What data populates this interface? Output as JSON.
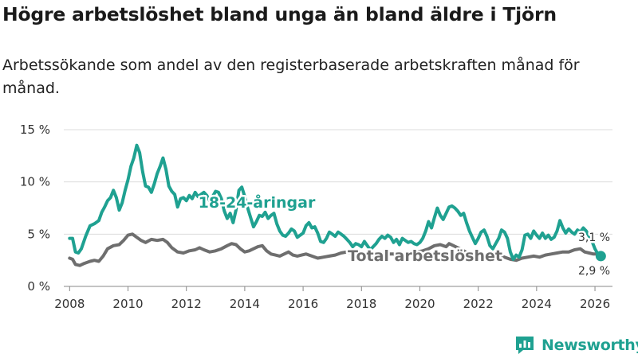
{
  "title": "Högre arbetslöshet bland unga än bland äldre i Tjörn",
  "subtitle": "Arbetssökande som andel av den registerbaserade arbetskraften månad för månad.",
  "brand": {
    "name": "Newsworthy",
    "color": "#1fa191"
  },
  "chart_data": {
    "type": "line",
    "xlim": [
      2007.8,
      2026.6
    ],
    "ylim": [
      0,
      15
    ],
    "yticks": [
      0,
      5,
      10,
      15
    ],
    "ytick_labels": [
      "0 %",
      "5 %",
      "10 %",
      "15 %"
    ],
    "xticks": [
      2008,
      2010,
      2012,
      2014,
      2016,
      2018,
      2020,
      2022,
      2024,
      2026
    ],
    "xtick_labels": [
      "2008",
      "2010",
      "2012",
      "2014",
      "2016",
      "2018",
      "2020",
      "2022",
      "2024",
      "2026"
    ],
    "series": [
      {
        "name": "Total arbetslöshet",
        "label": "Total arbetslöshet",
        "color": "#6e6e6e",
        "end_label": "2,9 %",
        "points": [
          [
            2008.0,
            2.7
          ],
          [
            2008.1,
            2.6
          ],
          [
            2008.2,
            2.1
          ],
          [
            2008.35,
            2.0
          ],
          [
            2008.5,
            2.2
          ],
          [
            2008.7,
            2.4
          ],
          [
            2008.85,
            2.5
          ],
          [
            2009.0,
            2.4
          ],
          [
            2009.15,
            2.9
          ],
          [
            2009.3,
            3.6
          ],
          [
            2009.5,
            3.9
          ],
          [
            2009.7,
            4.0
          ],
          [
            2009.85,
            4.4
          ],
          [
            2010.0,
            4.9
          ],
          [
            2010.15,
            5.0
          ],
          [
            2010.3,
            4.7
          ],
          [
            2010.45,
            4.4
          ],
          [
            2010.6,
            4.2
          ],
          [
            2010.8,
            4.5
          ],
          [
            2011.0,
            4.4
          ],
          [
            2011.2,
            4.5
          ],
          [
            2011.35,
            4.2
          ],
          [
            2011.5,
            3.7
          ],
          [
            2011.7,
            3.3
          ],
          [
            2011.9,
            3.2
          ],
          [
            2012.1,
            3.4
          ],
          [
            2012.3,
            3.5
          ],
          [
            2012.45,
            3.7
          ],
          [
            2012.6,
            3.5
          ],
          [
            2012.8,
            3.3
          ],
          [
            2013.0,
            3.4
          ],
          [
            2013.2,
            3.6
          ],
          [
            2013.4,
            3.9
          ],
          [
            2013.55,
            4.1
          ],
          [
            2013.7,
            4.0
          ],
          [
            2013.85,
            3.6
          ],
          [
            2014.0,
            3.3
          ],
          [
            2014.15,
            3.4
          ],
          [
            2014.3,
            3.6
          ],
          [
            2014.45,
            3.8
          ],
          [
            2014.6,
            3.9
          ],
          [
            2014.75,
            3.4
          ],
          [
            2014.9,
            3.1
          ],
          [
            2015.05,
            3.0
          ],
          [
            2015.2,
            2.9
          ],
          [
            2015.35,
            3.1
          ],
          [
            2015.5,
            3.3
          ],
          [
            2015.65,
            3.0
          ],
          [
            2015.8,
            2.9
          ],
          [
            2015.95,
            3.0
          ],
          [
            2016.1,
            3.1
          ],
          [
            2016.3,
            2.9
          ],
          [
            2016.5,
            2.7
          ],
          [
            2016.7,
            2.8
          ],
          [
            2016.9,
            2.9
          ],
          [
            2017.1,
            3.0
          ],
          [
            2017.3,
            3.2
          ],
          [
            2017.5,
            3.3
          ],
          [
            2017.7,
            3.1
          ],
          [
            2017.9,
            2.9
          ],
          [
            2018.1,
            2.8
          ],
          [
            2018.3,
            2.9
          ],
          [
            2018.5,
            2.8
          ],
          [
            2018.7,
            3.0
          ],
          [
            2018.9,
            3.1
          ],
          [
            2019.1,
            3.1
          ],
          [
            2019.3,
            2.9
          ],
          [
            2019.5,
            2.9
          ],
          [
            2019.7,
            3.1
          ],
          [
            2019.9,
            3.3
          ],
          [
            2020.1,
            3.4
          ],
          [
            2020.3,
            3.6
          ],
          [
            2020.5,
            3.9
          ],
          [
            2020.7,
            4.0
          ],
          [
            2020.9,
            3.8
          ],
          [
            2021.0,
            4.1
          ],
          [
            2021.15,
            3.9
          ],
          [
            2021.3,
            3.7
          ],
          [
            2021.5,
            3.4
          ],
          [
            2021.7,
            3.1
          ],
          [
            2021.9,
            2.9
          ],
          [
            2022.1,
            2.8
          ],
          [
            2022.3,
            2.9
          ],
          [
            2022.5,
            3.0
          ],
          [
            2022.7,
            3.0
          ],
          [
            2022.9,
            2.8
          ],
          [
            2023.1,
            2.6
          ],
          [
            2023.3,
            2.5
          ],
          [
            2023.5,
            2.7
          ],
          [
            2023.7,
            2.8
          ],
          [
            2023.9,
            2.9
          ],
          [
            2024.1,
            2.8
          ],
          [
            2024.3,
            3.0
          ],
          [
            2024.5,
            3.1
          ],
          [
            2024.7,
            3.2
          ],
          [
            2024.9,
            3.3
          ],
          [
            2025.1,
            3.3
          ],
          [
            2025.3,
            3.5
          ],
          [
            2025.5,
            3.6
          ],
          [
            2025.65,
            3.3
          ],
          [
            2025.8,
            3.2
          ],
          [
            2025.95,
            3.1
          ],
          [
            2026.1,
            3.1
          ],
          [
            2026.2,
            2.9
          ]
        ]
      },
      {
        "name": "18-24-åringar",
        "label": "18-24-åringar",
        "color": "#1fa191",
        "end_label": "3,1 %",
        "points": [
          [
            2008.0,
            4.6
          ],
          [
            2008.1,
            4.6
          ],
          [
            2008.2,
            3.3
          ],
          [
            2008.3,
            3.2
          ],
          [
            2008.4,
            3.6
          ],
          [
            2008.55,
            4.8
          ],
          [
            2008.7,
            5.8
          ],
          [
            2008.85,
            6.0
          ],
          [
            2009.0,
            6.3
          ],
          [
            2009.1,
            7.1
          ],
          [
            2009.2,
            7.6
          ],
          [
            2009.3,
            8.2
          ],
          [
            2009.4,
            8.5
          ],
          [
            2009.5,
            9.2
          ],
          [
            2009.6,
            8.5
          ],
          [
            2009.7,
            7.3
          ],
          [
            2009.8,
            8.0
          ],
          [
            2009.9,
            9.2
          ],
          [
            2010.0,
            10.2
          ],
          [
            2010.1,
            11.5
          ],
          [
            2010.2,
            12.3
          ],
          [
            2010.3,
            13.5
          ],
          [
            2010.4,
            12.8
          ],
          [
            2010.5,
            11.0
          ],
          [
            2010.6,
            9.6
          ],
          [
            2010.7,
            9.5
          ],
          [
            2010.8,
            9.0
          ],
          [
            2010.9,
            9.8
          ],
          [
            2011.0,
            10.8
          ],
          [
            2011.1,
            11.5
          ],
          [
            2011.2,
            12.3
          ],
          [
            2011.3,
            11.2
          ],
          [
            2011.4,
            9.6
          ],
          [
            2011.5,
            9.1
          ],
          [
            2011.6,
            8.8
          ],
          [
            2011.7,
            7.6
          ],
          [
            2011.8,
            8.4
          ],
          [
            2011.9,
            8.5
          ],
          [
            2012.0,
            8.2
          ],
          [
            2012.1,
            8.7
          ],
          [
            2012.2,
            8.4
          ],
          [
            2012.3,
            9.0
          ],
          [
            2012.4,
            8.6
          ],
          [
            2012.5,
            8.8
          ],
          [
            2012.6,
            9.0
          ],
          [
            2012.7,
            8.7
          ],
          [
            2012.8,
            8.2
          ],
          [
            2012.9,
            8.6
          ],
          [
            2013.0,
            9.1
          ],
          [
            2013.1,
            9.0
          ],
          [
            2013.2,
            8.4
          ],
          [
            2013.3,
            7.2
          ],
          [
            2013.4,
            6.5
          ],
          [
            2013.5,
            7.0
          ],
          [
            2013.6,
            6.1
          ],
          [
            2013.7,
            7.3
          ],
          [
            2013.8,
            9.2
          ],
          [
            2013.9,
            9.5
          ],
          [
            2014.0,
            8.6
          ],
          [
            2014.1,
            7.5
          ],
          [
            2014.2,
            6.6
          ],
          [
            2014.3,
            5.7
          ],
          [
            2014.4,
            6.2
          ],
          [
            2014.5,
            6.8
          ],
          [
            2014.6,
            6.7
          ],
          [
            2014.7,
            7.1
          ],
          [
            2014.8,
            6.5
          ],
          [
            2014.9,
            6.8
          ],
          [
            2015.0,
            7.0
          ],
          [
            2015.1,
            6.0
          ],
          [
            2015.2,
            5.3
          ],
          [
            2015.3,
            4.9
          ],
          [
            2015.4,
            4.8
          ],
          [
            2015.5,
            5.1
          ],
          [
            2015.6,
            5.5
          ],
          [
            2015.7,
            5.3
          ],
          [
            2015.8,
            4.7
          ],
          [
            2015.9,
            4.9
          ],
          [
            2016.0,
            5.1
          ],
          [
            2016.1,
            5.8
          ],
          [
            2016.2,
            6.1
          ],
          [
            2016.3,
            5.6
          ],
          [
            2016.4,
            5.7
          ],
          [
            2016.5,
            5.1
          ],
          [
            2016.6,
            4.3
          ],
          [
            2016.7,
            4.2
          ],
          [
            2016.8,
            4.6
          ],
          [
            2016.9,
            5.2
          ],
          [
            2017.0,
            5.0
          ],
          [
            2017.1,
            4.8
          ],
          [
            2017.2,
            5.2
          ],
          [
            2017.3,
            5.0
          ],
          [
            2017.4,
            4.8
          ],
          [
            2017.5,
            4.5
          ],
          [
            2017.6,
            4.2
          ],
          [
            2017.7,
            3.8
          ],
          [
            2017.8,
            4.1
          ],
          [
            2017.9,
            4.0
          ],
          [
            2018.0,
            3.8
          ],
          [
            2018.1,
            4.3
          ],
          [
            2018.2,
            3.9
          ],
          [
            2018.3,
            3.5
          ],
          [
            2018.4,
            3.8
          ],
          [
            2018.5,
            4.1
          ],
          [
            2018.6,
            4.5
          ],
          [
            2018.7,
            4.8
          ],
          [
            2018.8,
            4.6
          ],
          [
            2018.9,
            4.9
          ],
          [
            2019.0,
            4.7
          ],
          [
            2019.1,
            4.2
          ],
          [
            2019.2,
            4.5
          ],
          [
            2019.3,
            4.0
          ],
          [
            2019.4,
            4.6
          ],
          [
            2019.5,
            4.4
          ],
          [
            2019.6,
            4.2
          ],
          [
            2019.7,
            4.3
          ],
          [
            2019.8,
            4.1
          ],
          [
            2019.9,
            4.0
          ],
          [
            2020.0,
            4.2
          ],
          [
            2020.1,
            4.6
          ],
          [
            2020.2,
            5.3
          ],
          [
            2020.3,
            6.2
          ],
          [
            2020.4,
            5.6
          ],
          [
            2020.5,
            6.6
          ],
          [
            2020.6,
            7.5
          ],
          [
            2020.7,
            6.8
          ],
          [
            2020.8,
            6.4
          ],
          [
            2020.9,
            7.0
          ],
          [
            2021.0,
            7.6
          ],
          [
            2021.1,
            7.7
          ],
          [
            2021.2,
            7.5
          ],
          [
            2021.3,
            7.2
          ],
          [
            2021.4,
            6.8
          ],
          [
            2021.5,
            7.0
          ],
          [
            2021.6,
            6.1
          ],
          [
            2021.7,
            5.3
          ],
          [
            2021.8,
            4.7
          ],
          [
            2021.9,
            4.1
          ],
          [
            2022.0,
            4.6
          ],
          [
            2022.1,
            5.2
          ],
          [
            2022.2,
            5.4
          ],
          [
            2022.3,
            4.8
          ],
          [
            2022.4,
            3.9
          ],
          [
            2022.5,
            3.6
          ],
          [
            2022.6,
            4.1
          ],
          [
            2022.7,
            4.6
          ],
          [
            2022.8,
            5.4
          ],
          [
            2022.9,
            5.2
          ],
          [
            2023.0,
            4.6
          ],
          [
            2023.1,
            3.3
          ],
          [
            2023.2,
            2.6
          ],
          [
            2023.3,
            3.0
          ],
          [
            2023.4,
            2.8
          ],
          [
            2023.5,
            3.5
          ],
          [
            2023.6,
            4.9
          ],
          [
            2023.7,
            5.0
          ],
          [
            2023.8,
            4.6
          ],
          [
            2023.9,
            5.3
          ],
          [
            2024.0,
            4.9
          ],
          [
            2024.1,
            4.6
          ],
          [
            2024.2,
            5.1
          ],
          [
            2024.3,
            4.6
          ],
          [
            2024.4,
            4.9
          ],
          [
            2024.5,
            4.5
          ],
          [
            2024.6,
            4.7
          ],
          [
            2024.7,
            5.3
          ],
          [
            2024.8,
            6.3
          ],
          [
            2024.9,
            5.6
          ],
          [
            2025.0,
            5.1
          ],
          [
            2025.1,
            5.5
          ],
          [
            2025.2,
            5.2
          ],
          [
            2025.3,
            5.0
          ],
          [
            2025.4,
            5.4
          ],
          [
            2025.5,
            5.2
          ],
          [
            2025.6,
            5.6
          ],
          [
            2025.7,
            5.3
          ],
          [
            2025.8,
            4.8
          ],
          [
            2025.9,
            4.3
          ],
          [
            2026.0,
            3.6
          ],
          [
            2026.1,
            3.1
          ]
        ]
      }
    ]
  }
}
